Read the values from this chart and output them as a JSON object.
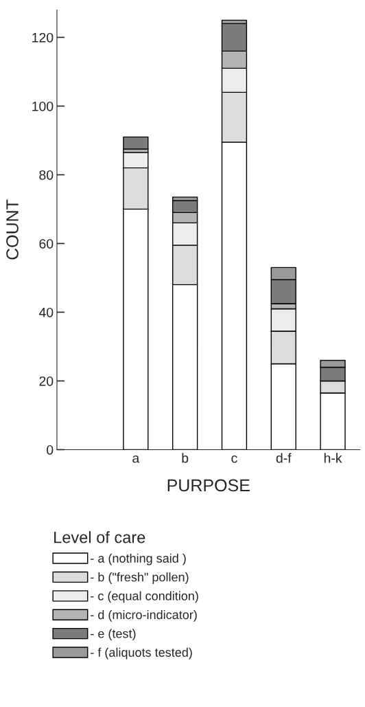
{
  "chart_data": {
    "type": "bar",
    "stacked": true,
    "xlabel": "PURPOSE",
    "ylabel": "COUNT",
    "legend_title": "Level of care",
    "legend": "bottom",
    "grid": false,
    "categories": [
      "a",
      "b",
      "c",
      "d-f",
      "h-k"
    ],
    "ylim": [
      0,
      128
    ],
    "yticks": [
      0,
      20,
      40,
      60,
      80,
      100,
      120
    ],
    "series": [
      {
        "name": "- a (nothing said )",
        "color": "#ffffff",
        "values": [
          70,
          48,
          89.5,
          25,
          16.5
        ]
      },
      {
        "name": "- b (\"fresh\" pollen)",
        "color": "#dcdcdc",
        "values": [
          12,
          11.5,
          14.5,
          9.5,
          3.5
        ]
      },
      {
        "name": "- c (equal condition)",
        "color": "#ececec",
        "values": [
          4.5,
          6.5,
          7,
          6.5,
          0
        ]
      },
      {
        "name": "- d (micro-indicator)",
        "color": "#b4b4b4",
        "values": [
          1,
          3,
          5,
          1.5,
          0
        ]
      },
      {
        "name": "- e (test)",
        "color": "#7c7c7c",
        "values": [
          3.5,
          3.5,
          8,
          7,
          4
        ]
      },
      {
        "name": "- f (aliquots tested)",
        "color": "#9a9a9a",
        "values": [
          0,
          1,
          1,
          3.5,
          2
        ]
      }
    ]
  }
}
